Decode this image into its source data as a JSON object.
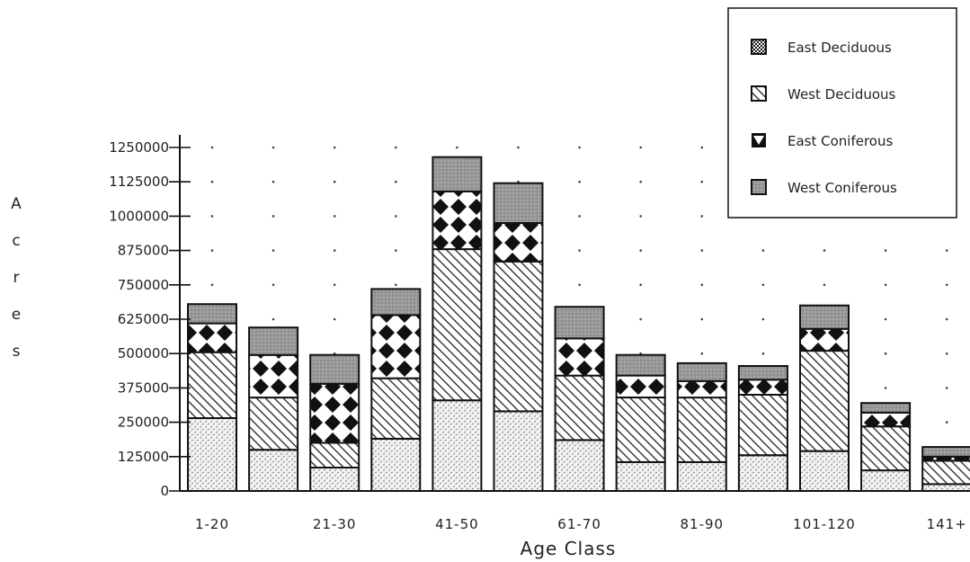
{
  "chart_data": {
    "type": "bar",
    "stacked": true,
    "title": "",
    "xlabel": "Age Class",
    "ylabel": "Acres",
    "ylim": [
      0,
      1250000
    ],
    "yticks": [
      0,
      125000,
      250000,
      375000,
      500000,
      625000,
      750000,
      875000,
      1000000,
      1125000,
      1250000
    ],
    "ytick_labels": [
      "0",
      "125000",
      "250000",
      "375000",
      "500000",
      "625000",
      "750000",
      "875000",
      "1000000",
      "1125000",
      "1250000"
    ],
    "grid": "dotted",
    "legend_position": "top-right",
    "categories": [
      "1-20",
      "",
      "21-30",
      "",
      "41-50",
      "",
      "61-70",
      "",
      "81-90",
      "",
      "101-120",
      "",
      "141+"
    ],
    "series": [
      {
        "name": "Stippled base (unlabeled)",
        "pattern": "stipple",
        "values": [
          265000,
          150000,
          85000,
          190000,
          330000,
          290000,
          185000,
          105000,
          105000,
          130000,
          145000,
          75000,
          25000
        ]
      },
      {
        "name": "West Deciduous",
        "pattern": "hatch",
        "values": [
          240000,
          190000,
          90000,
          220000,
          550000,
          545000,
          235000,
          235000,
          235000,
          220000,
          365000,
          160000,
          85000
        ]
      },
      {
        "name": "East Coniferous",
        "pattern": "diamond",
        "values": [
          105000,
          155000,
          215000,
          230000,
          210000,
          140000,
          135000,
          80000,
          60000,
          55000,
          80000,
          50000,
          15000
        ]
      },
      {
        "name": "West Coniferous",
        "pattern": "gray",
        "values": [
          70000,
          100000,
          105000,
          95000,
          125000,
          145000,
          115000,
          75000,
          65000,
          50000,
          85000,
          35000,
          35000
        ]
      }
    ],
    "legend": [
      {
        "label": "East Deciduous",
        "pattern": "checker"
      },
      {
        "label": "West Deciduous",
        "pattern": "hatch"
      },
      {
        "label": "East Coniferous",
        "pattern": "diamond"
      },
      {
        "label": "West Coniferous",
        "pattern": "gray"
      }
    ]
  }
}
